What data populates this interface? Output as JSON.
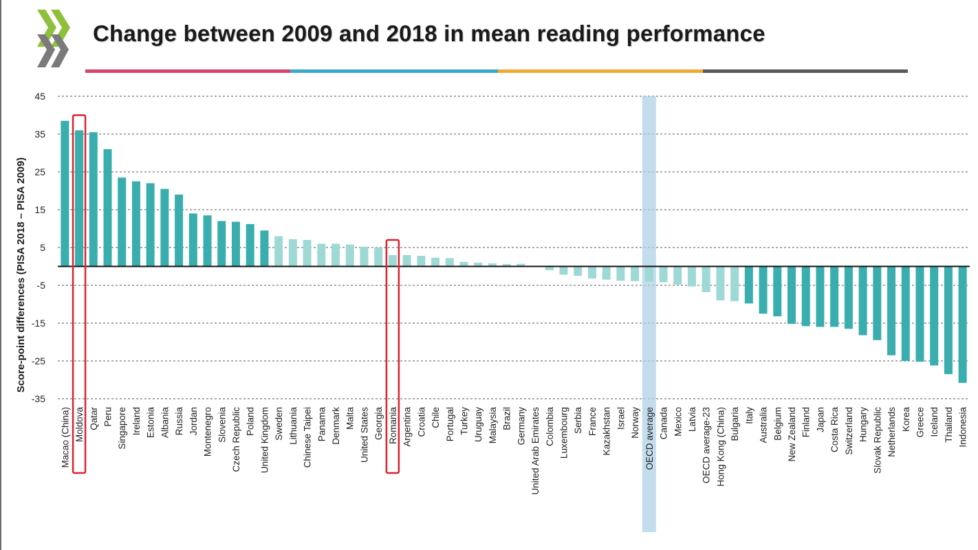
{
  "title": "Change between 2009 and 2018 in mean reading performance",
  "colors": {
    "accent_bars": "#3aaeae",
    "light_bars": "#9fd9d6",
    "highlight_box": "#d9232e",
    "oecd_band": "#a9cfe6",
    "underline": [
      "#d6456a",
      "#3ba9cc",
      "#f2a933",
      "#5a5a5a"
    ]
  },
  "chart_data": {
    "type": "bar",
    "title": "Change between 2009 and 2018 in mean reading performance",
    "ylabel": "Score-point differences (PISA 2018 – PISA 2009)",
    "xlabel": "",
    "ylim": [
      -35,
      45
    ],
    "yticks": [
      45,
      35,
      25,
      15,
      5,
      -5,
      -15,
      -25,
      -35
    ],
    "grid": true,
    "categories": [
      "Macao (China)",
      "Moldova",
      "Qatar",
      "Peru",
      "Singapore",
      "Ireland",
      "Estonia",
      "Albania",
      "Russia",
      "Jordan",
      "Montenegro",
      "Slovenia",
      "Czech Republic",
      "Poland",
      "United Kingdom",
      "Sweden",
      "Lithuania",
      "Chinese Taipei",
      "Panama",
      "Denmark",
      "Malta",
      "United States",
      "Georgia",
      "Romania",
      "Argentina",
      "Croatia",
      "Chile",
      "Portugal",
      "Turkey",
      "Uruguay",
      "Malaysia",
      "Brazil",
      "Germany",
      "United Arab Emirates",
      "Colombia",
      "Luxembourg",
      "Serbia",
      "France",
      "Kazakhstan",
      "Israel",
      "Norway",
      "OECD average",
      "Canada",
      "Mexico",
      "Latvia",
      "OECD average-23",
      "Hong Kong (China)",
      "Bulgaria",
      "Italy",
      "Australia",
      "Belgium",
      "New Zealand",
      "Finland",
      "Japan",
      "Costa Rica",
      "Switzerland",
      "Hungary",
      "Slovak Republic",
      "Netherlands",
      "Korea",
      "Greece",
      "Iceland",
      "Thailand",
      "Indonesia"
    ],
    "values": [
      38.5,
      36,
      35.5,
      31,
      23.5,
      22.5,
      22,
      20.5,
      19,
      14,
      13.5,
      12,
      11.8,
      11.2,
      9.5,
      8,
      7.2,
      7,
      6,
      6,
      5.8,
      5.2,
      5,
      3,
      3,
      2.8,
      2.3,
      2.2,
      1.2,
      1,
      0.8,
      0.6,
      0.7,
      0,
      -1,
      -2.2,
      -2.5,
      -3.2,
      -3.5,
      -3.8,
      -3.9,
      -4,
      -4.2,
      -4.8,
      -5.3,
      -6.8,
      -9,
      -9.2,
      -9.8,
      -12.5,
      -13.2,
      -15.2,
      -15.8,
      -16,
      -16,
      -16.5,
      -18.2,
      -19.5,
      -23.5,
      -25,
      -25.2,
      -26.2,
      -28.5,
      -30.8
    ],
    "significant": [
      true,
      true,
      true,
      true,
      true,
      true,
      true,
      true,
      true,
      true,
      true,
      true,
      true,
      true,
      true,
      false,
      false,
      false,
      false,
      false,
      false,
      false,
      false,
      false,
      false,
      false,
      false,
      false,
      false,
      false,
      false,
      false,
      false,
      false,
      false,
      false,
      false,
      false,
      false,
      false,
      false,
      false,
      false,
      false,
      false,
      false,
      false,
      false,
      true,
      true,
      true,
      true,
      true,
      true,
      true,
      true,
      true,
      true,
      true,
      true,
      true,
      true,
      true,
      true
    ],
    "highlighted": [
      "Moldova",
      "Romania"
    ],
    "reference_band": "OECD average"
  }
}
